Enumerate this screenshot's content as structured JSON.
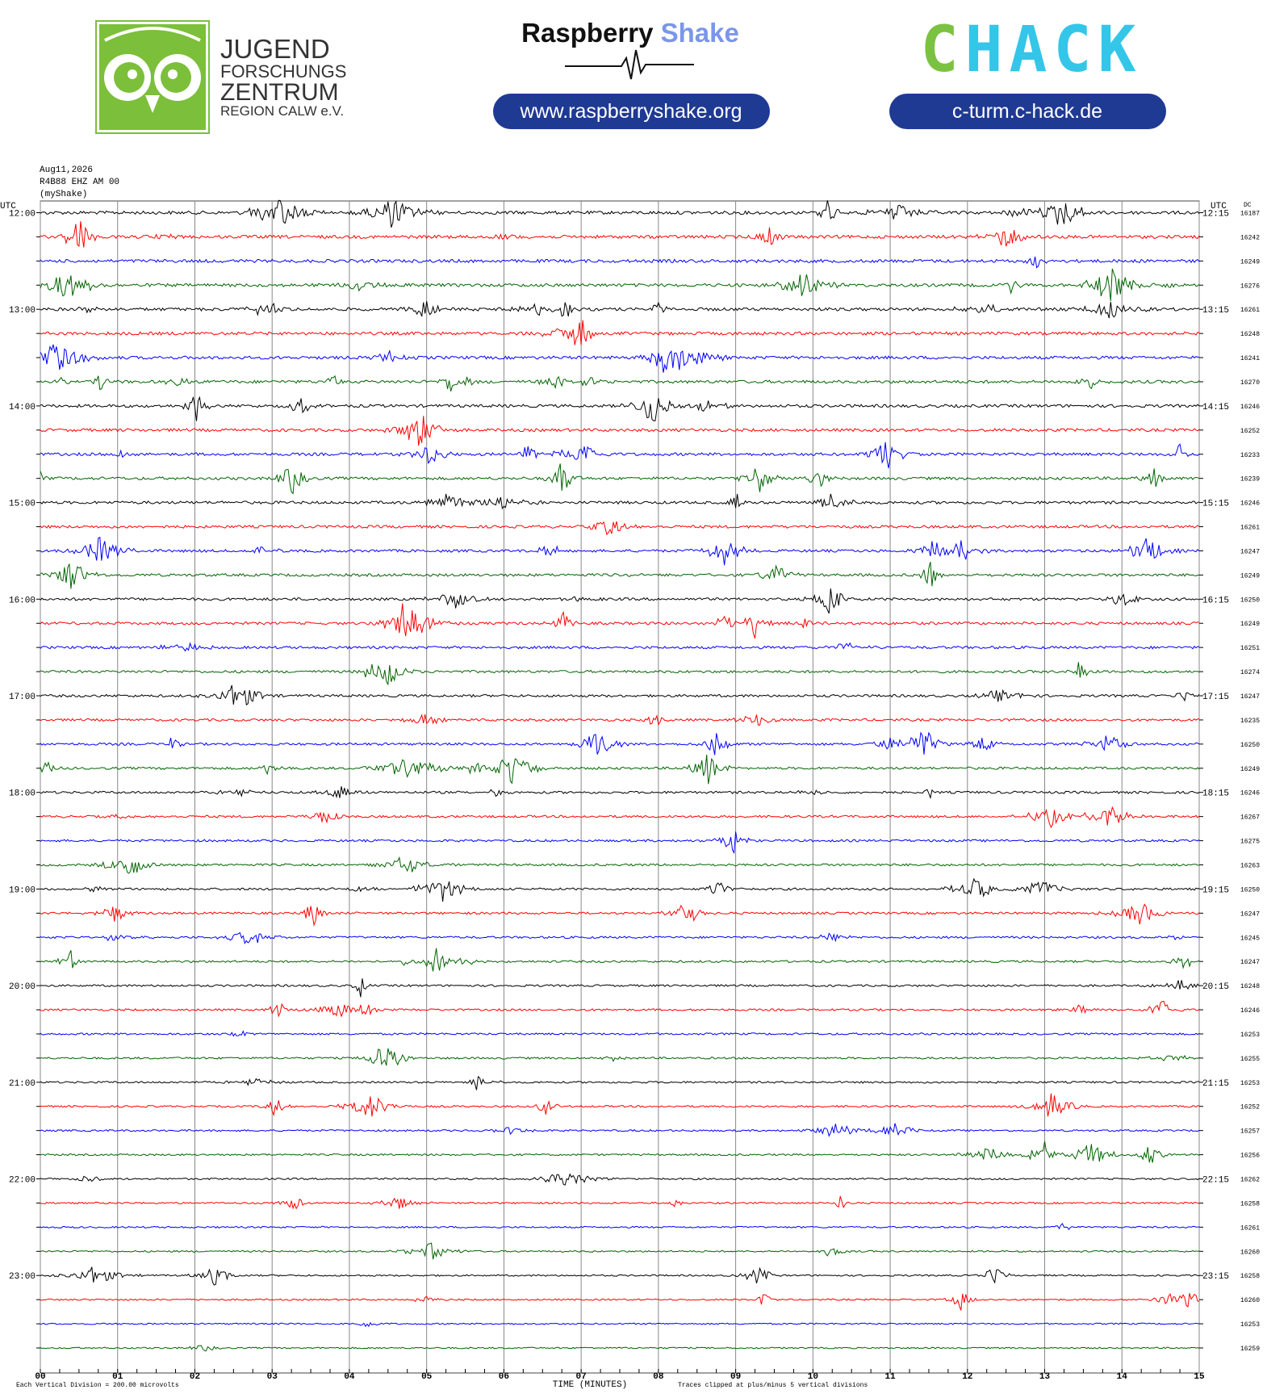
{
  "header": {
    "jfz_lines": [
      "JUGEND",
      "FORSCHUNGS",
      "ZENTRUM",
      "REGION CALW e.V."
    ],
    "raspberry": "Raspberry",
    "shake": "Shake",
    "rs_url": "www.raspberryshake.org",
    "chack_c": "C",
    "chack_rest": "HACK",
    "chack_url": "c-turm.c-hack.de"
  },
  "chart_data": {
    "type": "helicorder",
    "date": "Aug11,2026",
    "station": "R4B88 EHZ AM 00",
    "owner": "(myShake)",
    "left_unit": "UTC",
    "right_unit": "UTC",
    "dc_label": "DC",
    "rows_left": [
      "12:00",
      "13:00",
      "14:00",
      "15:00",
      "16:00",
      "17:00",
      "18:00",
      "19:00",
      "20:00",
      "21:00",
      "22:00",
      "23:00"
    ],
    "rows_right": [
      "12:15",
      "13:15",
      "14:15",
      "15:15",
      "16:15",
      "17:15",
      "18:15",
      "19:15",
      "20:15",
      "21:15",
      "22:15",
      "23:15"
    ],
    "dc": [
      16187,
      16242,
      16249,
      16276,
      16261,
      16248,
      16241,
      16270,
      16246,
      16252,
      16233,
      16239,
      16246,
      16261,
      16247,
      16249,
      16250,
      16249,
      16251,
      16274,
      16247,
      16235,
      16250,
      16249,
      16246,
      16267,
      16275,
      16263,
      16250,
      16247,
      16245,
      16247,
      16248,
      16246,
      16253,
      16255,
      16253,
      16252,
      16257,
      16256,
      16262,
      16258,
      16261,
      16260,
      16258,
      16260,
      16253,
      16259
    ],
    "colors": [
      "#000000",
      "#ff0000",
      "#0000ff",
      "#006400"
    ],
    "xlim": [
      0,
      15
    ],
    "xticks": [
      {
        "value": 0,
        "label": "00"
      },
      {
        "value": 1,
        "label": "01"
      },
      {
        "value": 2,
        "label": "02"
      },
      {
        "value": 3,
        "label": "03"
      },
      {
        "value": 4,
        "label": "04"
      },
      {
        "value": 5,
        "label": "05"
      },
      {
        "value": 6,
        "label": "06"
      },
      {
        "value": 7,
        "label": "07"
      },
      {
        "value": 8,
        "label": "08"
      },
      {
        "value": 9,
        "label": "09"
      },
      10,
      11,
      12,
      13,
      14,
      15
    ],
    "xlabel": "TIME (MINUTES)",
    "footer_left": "Each Vertical Division =  200.00 microvolts",
    "footer_right": "Traces clipped at plus/minus 5 vertical divisions"
  }
}
